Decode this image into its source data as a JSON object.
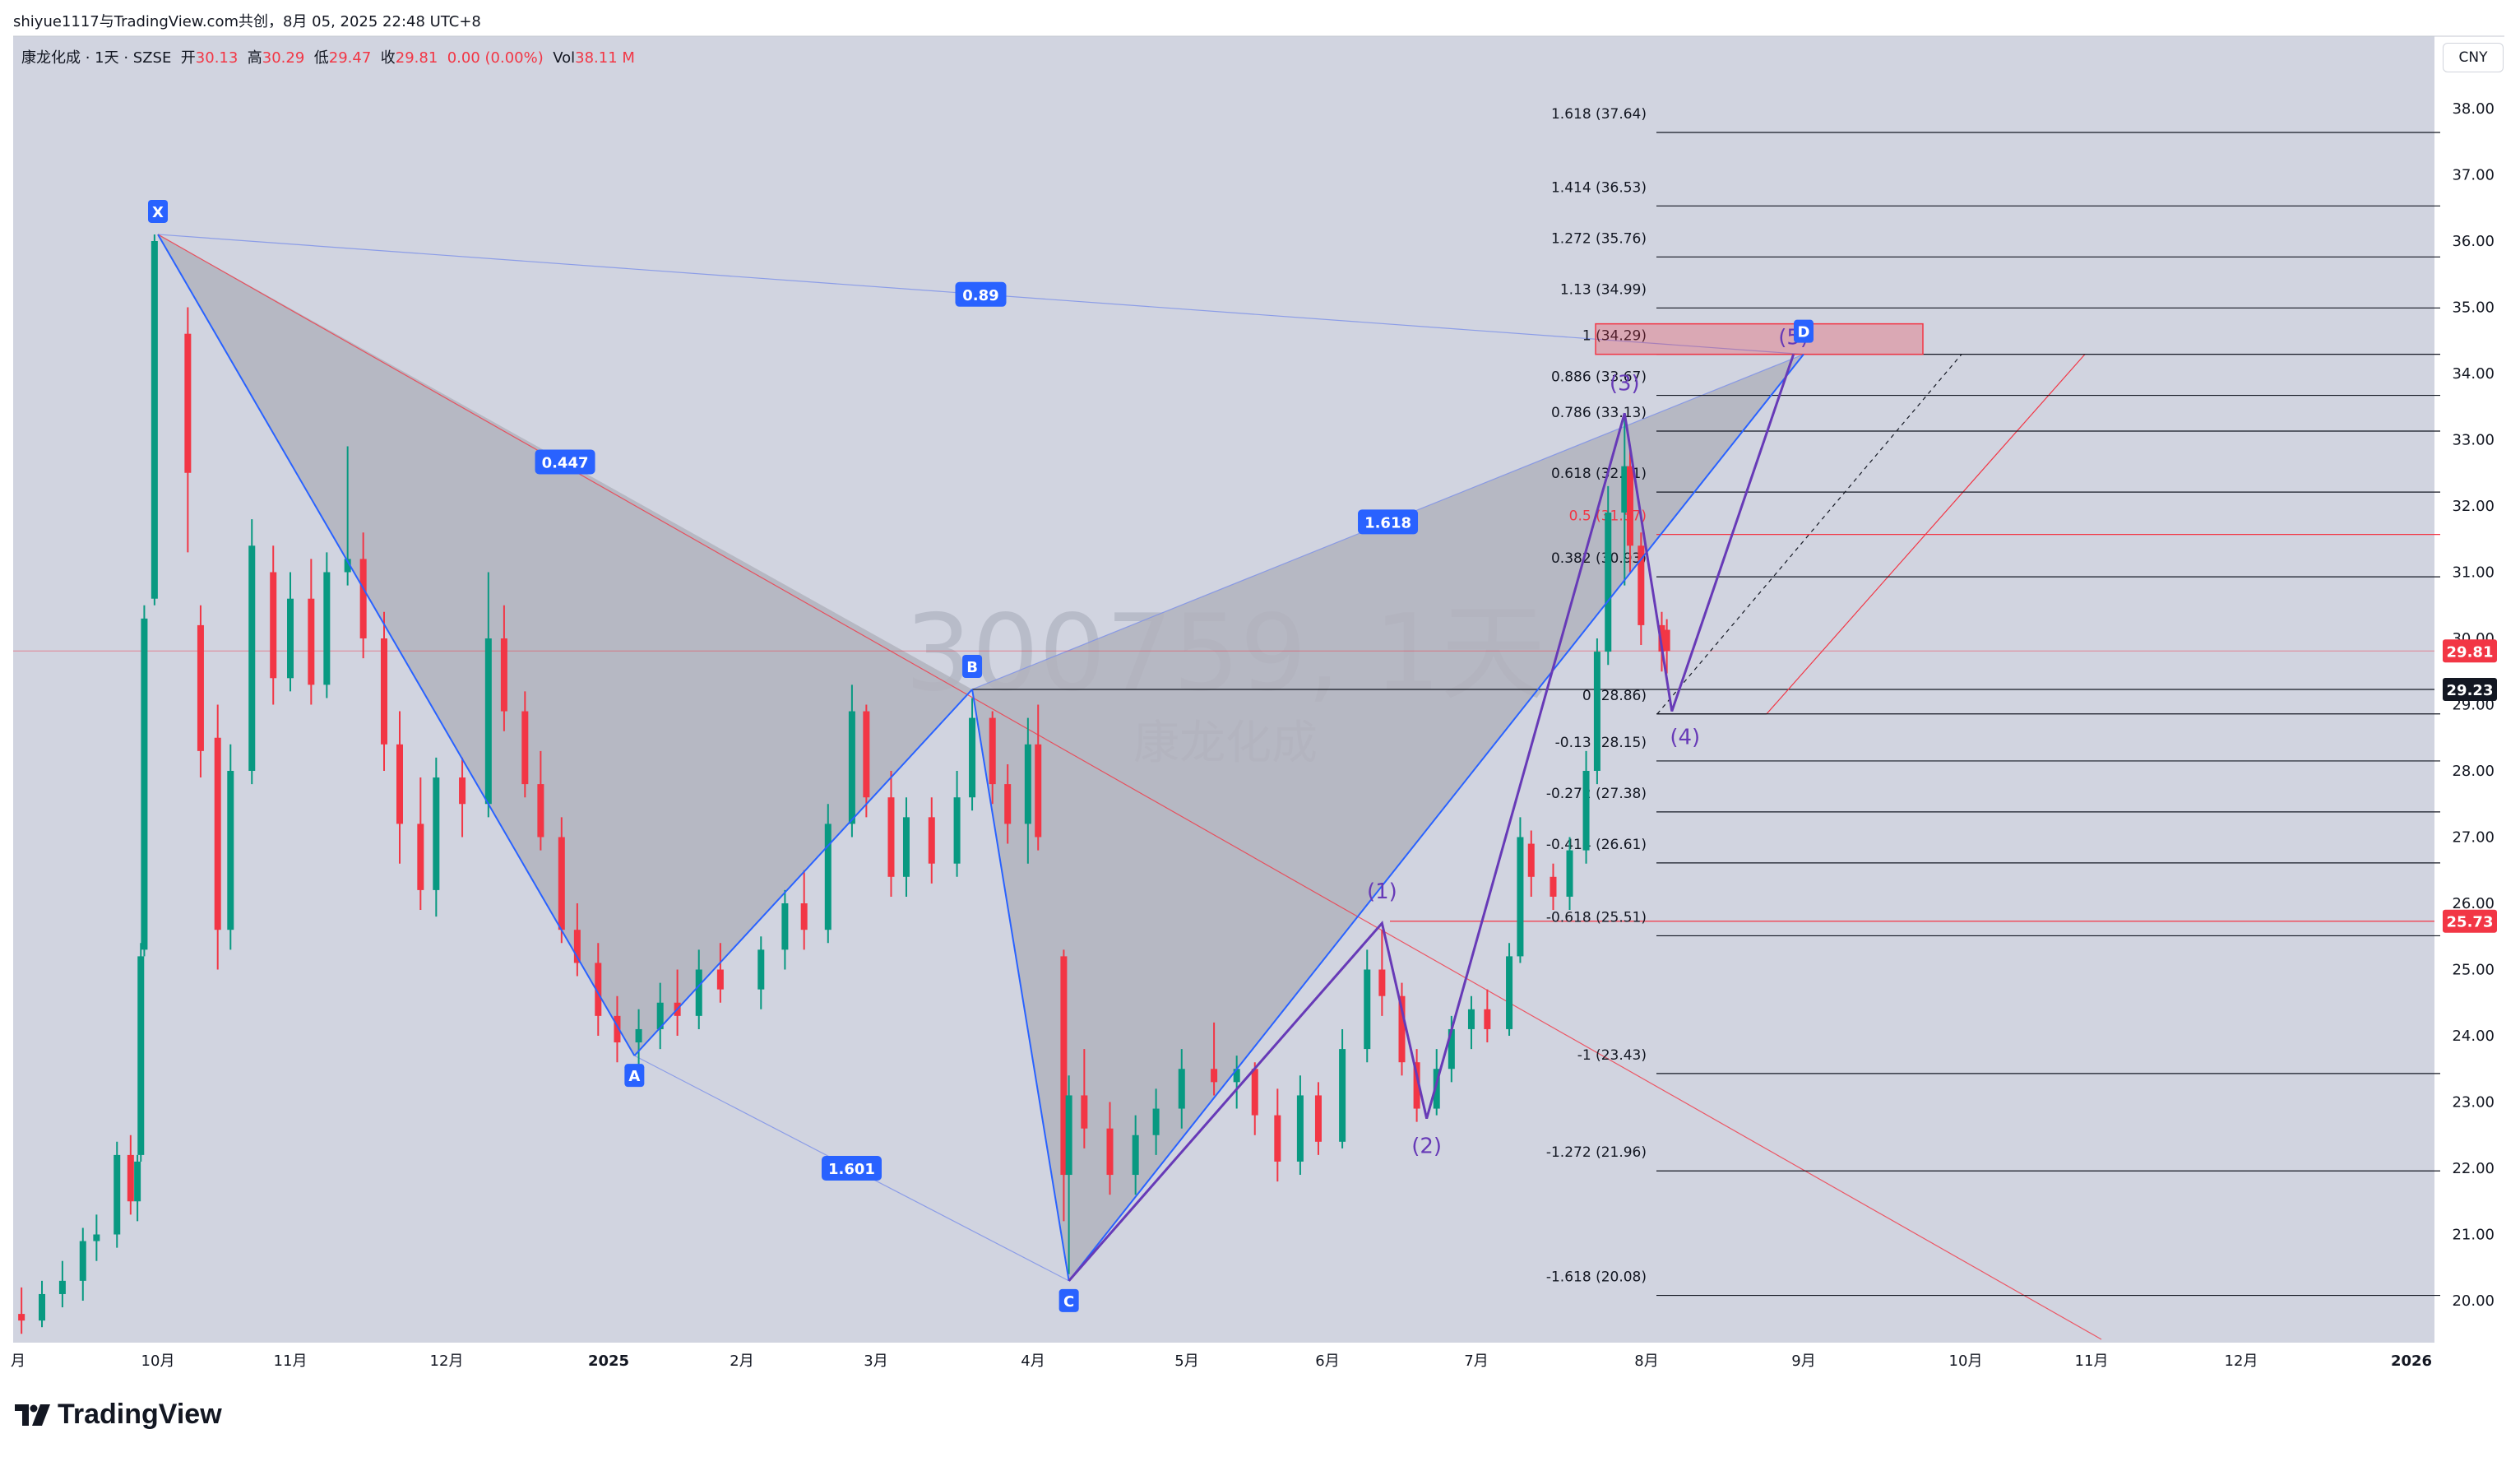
{
  "header": {
    "share_text": "shiyue1117与TradingView.com共创，8月 05, 2025 22:48 UTC+8",
    "currency_button": "CNY"
  },
  "legend": {
    "symbol": "康龙化成 · 1天 · SZSE",
    "open_label": "开",
    "open": "30.13",
    "high_label": "高",
    "high": "30.29",
    "low_label": "低",
    "low": "29.47",
    "close_label": "收",
    "close": "29.81",
    "change": "0.00 (0.00%)",
    "vol_label": "Vol",
    "vol": "38.11 M"
  },
  "watermark": {
    "symbol_line": "300759, 1天",
    "name_line": "康龙化成"
  },
  "footer": {
    "brand": "TradingView"
  },
  "chart_data": {
    "type": "candlestick",
    "symbol": "300759",
    "exchange": "SZSE",
    "interval": "1天",
    "currency": "CNY",
    "y_axis": {
      "range": [
        19.6,
        38.5
      ],
      "ticks": [
        20,
        21,
        22,
        23,
        24,
        25,
        26,
        27,
        28,
        29,
        30,
        31,
        32,
        33,
        34,
        35,
        36,
        37,
        38
      ]
    },
    "price_labels": [
      {
        "value": "29.81",
        "color": "#f23645",
        "price": 29.81
      },
      {
        "value": "29.23",
        "color": "#131722",
        "price": 29.23
      },
      {
        "value": "25.73",
        "color": "#f23645",
        "price": 25.73
      }
    ],
    "x_axis": {
      "ticks": [
        {
          "label": "月",
          "date": "2024-08-21"
        },
        {
          "label": "10月",
          "date": "2024-10-01"
        },
        {
          "label": "11月",
          "date": "2024-11-01"
        },
        {
          "label": "12月",
          "date": "2024-12-01"
        },
        {
          "label": "2025",
          "date": "2025-01-01"
        },
        {
          "label": "2月",
          "date": "2025-02-01"
        },
        {
          "label": "3月",
          "date": "2025-03-01"
        },
        {
          "label": "4月",
          "date": "2025-04-01"
        },
        {
          "label": "5月",
          "date": "2025-05-01"
        },
        {
          "label": "6月",
          "date": "2025-06-01"
        },
        {
          "label": "7月",
          "date": "2025-07-01"
        },
        {
          "label": "8月",
          "date": "2025-08-01"
        },
        {
          "label": "9月",
          "date": "2025-09-01"
        },
        {
          "label": "10月",
          "date": "2025-10-01"
        },
        {
          "label": "11月",
          "date": "2025-11-01"
        },
        {
          "label": "12月",
          "date": "2025-12-01"
        },
        {
          "label": "2026",
          "date": "2026-01-01"
        }
      ]
    },
    "candles": [
      {
        "d": "2024-08-22",
        "o": 19.8,
        "h": 20.2,
        "l": 19.5,
        "c": 19.7
      },
      {
        "d": "2024-08-28",
        "o": 19.7,
        "h": 20.3,
        "l": 19.6,
        "c": 20.1
      },
      {
        "d": "2024-09-03",
        "o": 20.1,
        "h": 20.6,
        "l": 19.9,
        "c": 20.3
      },
      {
        "d": "2024-09-09",
        "o": 20.3,
        "h": 21.1,
        "l": 20.0,
        "c": 20.9
      },
      {
        "d": "2024-09-13",
        "o": 20.9,
        "h": 21.3,
        "l": 20.6,
        "c": 21.0
      },
      {
        "d": "2024-09-19",
        "o": 21.0,
        "h": 22.4,
        "l": 20.8,
        "c": 22.2
      },
      {
        "d": "2024-09-23",
        "o": 22.2,
        "h": 22.5,
        "l": 21.3,
        "c": 21.5
      },
      {
        "d": "2024-09-25",
        "o": 21.5,
        "h": 22.2,
        "l": 21.2,
        "c": 22.1
      },
      {
        "d": "2024-09-26",
        "o": 22.2,
        "h": 25.4,
        "l": 22.1,
        "c": 25.2
      },
      {
        "d": "2024-09-27",
        "o": 25.3,
        "h": 30.5,
        "l": 25.2,
        "c": 30.3
      },
      {
        "d": "2024-09-30",
        "o": 30.6,
        "h": 36.1,
        "l": 30.5,
        "c": 36.0
      },
      {
        "d": "2024-10-08",
        "o": 34.6,
        "h": 35.0,
        "l": 31.3,
        "c": 32.5
      },
      {
        "d": "2024-10-11",
        "o": 30.2,
        "h": 30.5,
        "l": 27.9,
        "c": 28.3
      },
      {
        "d": "2024-10-15",
        "o": 28.5,
        "h": 29.0,
        "l": 25.0,
        "c": 25.6
      },
      {
        "d": "2024-10-18",
        "o": 25.6,
        "h": 28.4,
        "l": 25.3,
        "c": 28.0
      },
      {
        "d": "2024-10-23",
        "o": 28.0,
        "h": 31.8,
        "l": 27.8,
        "c": 31.4
      },
      {
        "d": "2024-10-28",
        "o": 31.0,
        "h": 31.4,
        "l": 29.0,
        "c": 29.4
      },
      {
        "d": "2024-11-01",
        "o": 29.4,
        "h": 31.0,
        "l": 29.2,
        "c": 30.6
      },
      {
        "d": "2024-11-05",
        "o": 30.6,
        "h": 31.2,
        "l": 29.0,
        "c": 29.3
      },
      {
        "d": "2024-11-08",
        "o": 29.3,
        "h": 31.3,
        "l": 29.1,
        "c": 31.0
      },
      {
        "d": "2024-11-12",
        "o": 31.0,
        "h": 32.9,
        "l": 30.8,
        "c": 31.2
      },
      {
        "d": "2024-11-15",
        "o": 31.2,
        "h": 31.6,
        "l": 29.7,
        "c": 30.0
      },
      {
        "d": "2024-11-19",
        "o": 30.0,
        "h": 30.4,
        "l": 28.0,
        "c": 28.4
      },
      {
        "d": "2024-11-22",
        "o": 28.4,
        "h": 28.9,
        "l": 26.6,
        "c": 27.2
      },
      {
        "d": "2024-11-26",
        "o": 27.2,
        "h": 27.9,
        "l": 25.9,
        "c": 26.2
      },
      {
        "d": "2024-11-29",
        "o": 26.2,
        "h": 28.2,
        "l": 25.8,
        "c": 27.9
      },
      {
        "d": "2024-12-04",
        "o": 27.9,
        "h": 28.2,
        "l": 27.0,
        "c": 27.5
      },
      {
        "d": "2024-12-09",
        "o": 27.5,
        "h": 31.0,
        "l": 27.3,
        "c": 30.0
      },
      {
        "d": "2024-12-12",
        "o": 30.0,
        "h": 30.5,
        "l": 28.6,
        "c": 28.9
      },
      {
        "d": "2024-12-16",
        "o": 28.9,
        "h": 29.2,
        "l": 27.6,
        "c": 27.8
      },
      {
        "d": "2024-12-19",
        "o": 27.8,
        "h": 28.3,
        "l": 26.8,
        "c": 27.0
      },
      {
        "d": "2024-12-23",
        "o": 27.0,
        "h": 27.3,
        "l": 25.4,
        "c": 25.6
      },
      {
        "d": "2024-12-26",
        "o": 25.6,
        "h": 26.0,
        "l": 24.9,
        "c": 25.1
      },
      {
        "d": "2024-12-30",
        "o": 25.1,
        "h": 25.4,
        "l": 24.0,
        "c": 24.3
      },
      {
        "d": "2025-01-03",
        "o": 24.3,
        "h": 24.6,
        "l": 23.6,
        "c": 23.9
      },
      {
        "d": "2025-01-08",
        "o": 23.9,
        "h": 24.4,
        "l": 23.4,
        "c": 24.1
      },
      {
        "d": "2025-01-13",
        "o": 24.1,
        "h": 24.8,
        "l": 23.8,
        "c": 24.5
      },
      {
        "d": "2025-01-17",
        "o": 24.5,
        "h": 25.0,
        "l": 24.0,
        "c": 24.3
      },
      {
        "d": "2025-01-22",
        "o": 24.3,
        "h": 25.3,
        "l": 24.1,
        "c": 25.0
      },
      {
        "d": "2025-01-27",
        "o": 25.0,
        "h": 25.4,
        "l": 24.5,
        "c": 24.7
      },
      {
        "d": "2025-02-05",
        "o": 24.7,
        "h": 25.5,
        "l": 24.4,
        "c": 25.3
      },
      {
        "d": "2025-02-10",
        "o": 25.3,
        "h": 26.2,
        "l": 25.0,
        "c": 26.0
      },
      {
        "d": "2025-02-14",
        "o": 26.0,
        "h": 26.5,
        "l": 25.3,
        "c": 25.6
      },
      {
        "d": "2025-02-19",
        "o": 25.6,
        "h": 27.5,
        "l": 25.4,
        "c": 27.2
      },
      {
        "d": "2025-02-24",
        "o": 27.2,
        "h": 29.3,
        "l": 27.0,
        "c": 28.9
      },
      {
        "d": "2025-02-27",
        "o": 28.9,
        "h": 29.0,
        "l": 27.3,
        "c": 27.6
      },
      {
        "d": "2025-03-04",
        "o": 27.6,
        "h": 28.0,
        "l": 26.1,
        "c": 26.4
      },
      {
        "d": "2025-03-07",
        "o": 26.4,
        "h": 27.6,
        "l": 26.1,
        "c": 27.3
      },
      {
        "d": "2025-03-12",
        "o": 27.3,
        "h": 27.6,
        "l": 26.3,
        "c": 26.6
      },
      {
        "d": "2025-03-17",
        "o": 26.6,
        "h": 28.0,
        "l": 26.4,
        "c": 27.6
      },
      {
        "d": "2025-03-20",
        "o": 27.6,
        "h": 29.1,
        "l": 27.4,
        "c": 28.8
      },
      {
        "d": "2025-03-24",
        "o": 28.8,
        "h": 28.9,
        "l": 27.5,
        "c": 27.8
      },
      {
        "d": "2025-03-27",
        "o": 27.8,
        "h": 28.1,
        "l": 26.9,
        "c": 27.2
      },
      {
        "d": "2025-03-31",
        "o": 27.2,
        "h": 28.8,
        "l": 26.6,
        "c": 28.4
      },
      {
        "d": "2025-04-02",
        "o": 28.4,
        "h": 29.0,
        "l": 26.8,
        "c": 27.0
      },
      {
        "d": "2025-04-07",
        "o": 25.2,
        "h": 25.3,
        "l": 21.2,
        "c": 21.9
      },
      {
        "d": "2025-04-08",
        "o": 21.9,
        "h": 23.4,
        "l": 20.4,
        "c": 23.1
      },
      {
        "d": "2025-04-11",
        "o": 23.1,
        "h": 23.8,
        "l": 22.3,
        "c": 22.6
      },
      {
        "d": "2025-04-16",
        "o": 22.6,
        "h": 23.0,
        "l": 21.6,
        "c": 21.9
      },
      {
        "d": "2025-04-21",
        "o": 21.9,
        "h": 22.8,
        "l": 21.6,
        "c": 22.5
      },
      {
        "d": "2025-04-25",
        "o": 22.5,
        "h": 23.2,
        "l": 22.2,
        "c": 22.9
      },
      {
        "d": "2025-04-30",
        "o": 22.9,
        "h": 23.8,
        "l": 22.6,
        "c": 23.5
      },
      {
        "d": "2025-05-07",
        "o": 23.5,
        "h": 24.2,
        "l": 23.1,
        "c": 23.3
      },
      {
        "d": "2025-05-12",
        "o": 23.3,
        "h": 23.7,
        "l": 22.9,
        "c": 23.5
      },
      {
        "d": "2025-05-16",
        "o": 23.5,
        "h": 23.6,
        "l": 22.5,
        "c": 22.8
      },
      {
        "d": "2025-05-21",
        "o": 22.8,
        "h": 23.2,
        "l": 21.8,
        "c": 22.1
      },
      {
        "d": "2025-05-26",
        "o": 22.1,
        "h": 23.4,
        "l": 21.9,
        "c": 23.1
      },
      {
        "d": "2025-05-30",
        "o": 23.1,
        "h": 23.3,
        "l": 22.2,
        "c": 22.4
      },
      {
        "d": "2025-06-04",
        "o": 22.4,
        "h": 24.1,
        "l": 22.3,
        "c": 23.8
      },
      {
        "d": "2025-06-09",
        "o": 23.8,
        "h": 25.3,
        "l": 23.6,
        "c": 25.0
      },
      {
        "d": "2025-06-12",
        "o": 25.0,
        "h": 25.6,
        "l": 24.3,
        "c": 24.6
      },
      {
        "d": "2025-06-16",
        "o": 24.6,
        "h": 24.8,
        "l": 23.4,
        "c": 23.6
      },
      {
        "d": "2025-06-19",
        "o": 23.6,
        "h": 23.8,
        "l": 22.7,
        "c": 22.9
      },
      {
        "d": "2025-06-23",
        "o": 22.9,
        "h": 23.8,
        "l": 22.8,
        "c": 23.5
      },
      {
        "d": "2025-06-26",
        "o": 23.5,
        "h": 24.3,
        "l": 23.3,
        "c": 24.1
      },
      {
        "d": "2025-06-30",
        "o": 24.1,
        "h": 24.6,
        "l": 23.8,
        "c": 24.4
      },
      {
        "d": "2025-07-03",
        "o": 24.4,
        "h": 24.7,
        "l": 23.9,
        "c": 24.1
      },
      {
        "d": "2025-07-07",
        "o": 24.1,
        "h": 25.4,
        "l": 24.0,
        "c": 25.2
      },
      {
        "d": "2025-07-09",
        "o": 25.2,
        "h": 27.3,
        "l": 25.1,
        "c": 27.0
      },
      {
        "d": "2025-07-11",
        "o": 26.9,
        "h": 27.1,
        "l": 26.1,
        "c": 26.4
      },
      {
        "d": "2025-07-15",
        "o": 26.4,
        "h": 26.6,
        "l": 25.9,
        "c": 26.1
      },
      {
        "d": "2025-07-18",
        "o": 26.1,
        "h": 27.0,
        "l": 25.9,
        "c": 26.8
      },
      {
        "d": "2025-07-21",
        "o": 26.8,
        "h": 28.3,
        "l": 26.6,
        "c": 28.0
      },
      {
        "d": "2025-07-23",
        "o": 28.0,
        "h": 30.0,
        "l": 27.8,
        "c": 29.8
      },
      {
        "d": "2025-07-25",
        "o": 29.8,
        "h": 32.3,
        "l": 29.6,
        "c": 31.9
      },
      {
        "d": "2025-07-28",
        "o": 31.9,
        "h": 33.4,
        "l": 30.8,
        "c": 32.6
      },
      {
        "d": "2025-07-29",
        "o": 32.6,
        "h": 32.9,
        "l": 31.0,
        "c": 31.4
      },
      {
        "d": "2025-07-31",
        "o": 31.4,
        "h": 31.6,
        "l": 29.9,
        "c": 30.2
      },
      {
        "d": "2025-08-04",
        "o": 30.2,
        "h": 30.4,
        "l": 29.5,
        "c": 29.8
      },
      {
        "d": "2025-08-05",
        "o": 30.13,
        "h": 30.29,
        "l": 29.47,
        "c": 29.81
      }
    ],
    "xabcd_pattern": {
      "points": [
        {
          "label": "X",
          "date": "2024-10-01",
          "price": 36.1
        },
        {
          "label": "A",
          "date": "2025-01-07",
          "price": 23.7
        },
        {
          "label": "B",
          "date": "2025-03-20",
          "price": 29.23
        },
        {
          "label": "C",
          "date": "2025-04-08",
          "price": 20.3
        },
        {
          "label": "D",
          "date": "2025-09-01",
          "price": 34.29
        }
      ],
      "ratios": [
        {
          "value": "0.447",
          "from": "X",
          "to": "B"
        },
        {
          "value": "1.601",
          "from": "A",
          "to": "C"
        },
        {
          "value": "1.618",
          "from": "B",
          "to": "D"
        },
        {
          "value": "0.89",
          "from": "X",
          "to": "D"
        }
      ]
    },
    "elliott_wave": [
      {
        "label": "(1)",
        "date": "2025-06-12",
        "price": 25.7
      },
      {
        "label": "(2)",
        "date": "2025-06-21",
        "price": 22.75
      },
      {
        "label": "(3)",
        "date": "2025-07-28",
        "price": 33.4
      },
      {
        "label": "(4)",
        "date": "2025-08-06",
        "price": 28.9
      },
      {
        "label": "(5)",
        "date": "2025-08-30",
        "price": 34.29
      }
    ],
    "fib_levels": [
      {
        "label": "1.618 (37.64)",
        "price": 37.64
      },
      {
        "label": "1.414 (36.53)",
        "price": 36.53
      },
      {
        "label": "1.272 (35.76)",
        "price": 35.76
      },
      {
        "label": "1.13 (34.99)",
        "price": 34.99
      },
      {
        "label": "1 (34.29)",
        "price": 34.29
      },
      {
        "label": "0.886 (33.67)",
        "price": 33.67
      },
      {
        "label": "0.786 (33.13)",
        "price": 33.13
      },
      {
        "label": "0.618 (32.21)",
        "price": 32.21
      },
      {
        "label": "0.5 (31.57)",
        "price": 31.57,
        "highlight": true
      },
      {
        "label": "0.382 (30.93)",
        "price": 30.93
      },
      {
        "label": "0 (28.86)",
        "price": 28.86
      },
      {
        "label": "-0.13 (28.15)",
        "price": 28.15
      },
      {
        "label": "-0.272 (27.38)",
        "price": 27.38
      },
      {
        "label": "-0.414 (26.61)",
        "price": 26.61
      },
      {
        "label": "-0.618 (25.51)",
        "price": 25.51
      },
      {
        "label": "-1 (23.43)",
        "price": 23.43
      },
      {
        "label": "-1.272 (21.96)",
        "price": 21.96
      },
      {
        "label": "-1.618 (20.08)",
        "price": 20.08
      }
    ]
  }
}
